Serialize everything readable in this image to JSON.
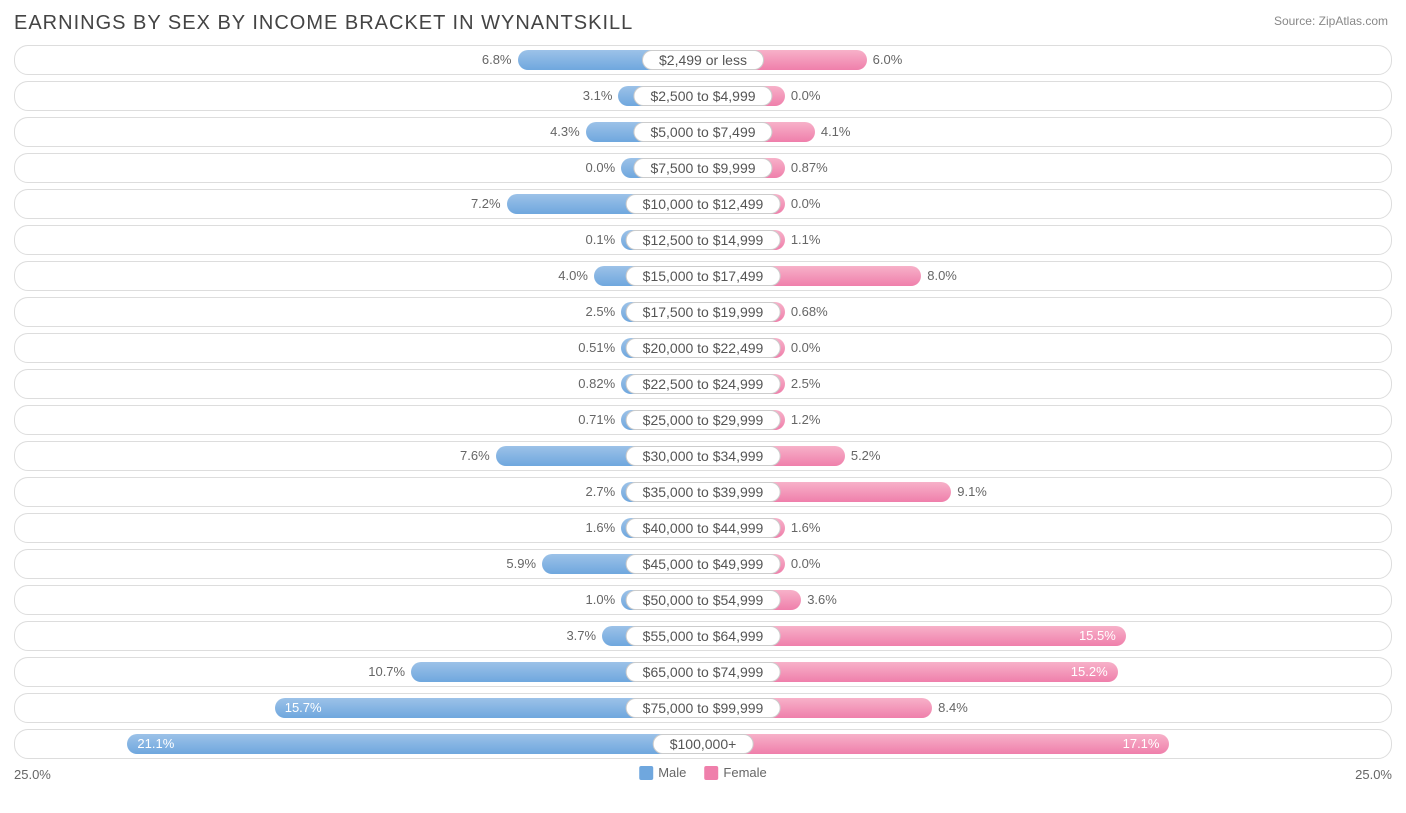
{
  "title": "EARNINGS BY SEX BY INCOME BRACKET IN WYNANTSKILL",
  "source": "Source: ZipAtlas.com",
  "axis_max_pct": 25.0,
  "axis_label": "25.0%",
  "min_bar_width_pct": 12,
  "inside_threshold_pct": 12,
  "legend": {
    "male": {
      "label": "Male",
      "color": "#6fa7de"
    },
    "female": {
      "label": "Female",
      "color": "#ef7fab"
    }
  },
  "colors": {
    "male_bar": "linear-gradient(to bottom, #9cc2e8 0%, #6fa7de 100%)",
    "female_bar": "linear-gradient(to bottom, #f7b1c9 0%, #ef7fab 100%)",
    "row_border": "#dddddd",
    "text": "#666666",
    "title": "#444444"
  },
  "categories": [
    {
      "label": "$2,499 or less",
      "male": 6.8,
      "male_label": "6.8%",
      "female": 6.0,
      "female_label": "6.0%"
    },
    {
      "label": "$2,500 to $4,999",
      "male": 3.1,
      "male_label": "3.1%",
      "female": 0.0,
      "female_label": "0.0%"
    },
    {
      "label": "$5,000 to $7,499",
      "male": 4.3,
      "male_label": "4.3%",
      "female": 4.1,
      "female_label": "4.1%"
    },
    {
      "label": "$7,500 to $9,999",
      "male": 0.0,
      "male_label": "0.0%",
      "female": 0.87,
      "female_label": "0.87%"
    },
    {
      "label": "$10,000 to $12,499",
      "male": 7.2,
      "male_label": "7.2%",
      "female": 0.0,
      "female_label": "0.0%"
    },
    {
      "label": "$12,500 to $14,999",
      "male": 0.1,
      "male_label": "0.1%",
      "female": 1.1,
      "female_label": "1.1%"
    },
    {
      "label": "$15,000 to $17,499",
      "male": 4.0,
      "male_label": "4.0%",
      "female": 8.0,
      "female_label": "8.0%"
    },
    {
      "label": "$17,500 to $19,999",
      "male": 2.5,
      "male_label": "2.5%",
      "female": 0.68,
      "female_label": "0.68%"
    },
    {
      "label": "$20,000 to $22,499",
      "male": 0.51,
      "male_label": "0.51%",
      "female": 0.0,
      "female_label": "0.0%"
    },
    {
      "label": "$22,500 to $24,999",
      "male": 0.82,
      "male_label": "0.82%",
      "female": 2.5,
      "female_label": "2.5%"
    },
    {
      "label": "$25,000 to $29,999",
      "male": 0.71,
      "male_label": "0.71%",
      "female": 1.2,
      "female_label": "1.2%"
    },
    {
      "label": "$30,000 to $34,999",
      "male": 7.6,
      "male_label": "7.6%",
      "female": 5.2,
      "female_label": "5.2%"
    },
    {
      "label": "$35,000 to $39,999",
      "male": 2.7,
      "male_label": "2.7%",
      "female": 9.1,
      "female_label": "9.1%"
    },
    {
      "label": "$40,000 to $44,999",
      "male": 1.6,
      "male_label": "1.6%",
      "female": 1.6,
      "female_label": "1.6%"
    },
    {
      "label": "$45,000 to $49,999",
      "male": 5.9,
      "male_label": "5.9%",
      "female": 0.0,
      "female_label": "0.0%"
    },
    {
      "label": "$50,000 to $54,999",
      "male": 1.0,
      "male_label": "1.0%",
      "female": 3.6,
      "female_label": "3.6%"
    },
    {
      "label": "$55,000 to $64,999",
      "male": 3.7,
      "male_label": "3.7%",
      "female": 15.5,
      "female_label": "15.5%"
    },
    {
      "label": "$65,000 to $74,999",
      "male": 10.7,
      "male_label": "10.7%",
      "female": 15.2,
      "female_label": "15.2%"
    },
    {
      "label": "$75,000 to $99,999",
      "male": 15.7,
      "male_label": "15.7%",
      "female": 8.4,
      "female_label": "8.4%"
    },
    {
      "label": "$100,000+",
      "male": 21.1,
      "male_label": "21.1%",
      "female": 17.1,
      "female_label": "17.1%"
    }
  ]
}
